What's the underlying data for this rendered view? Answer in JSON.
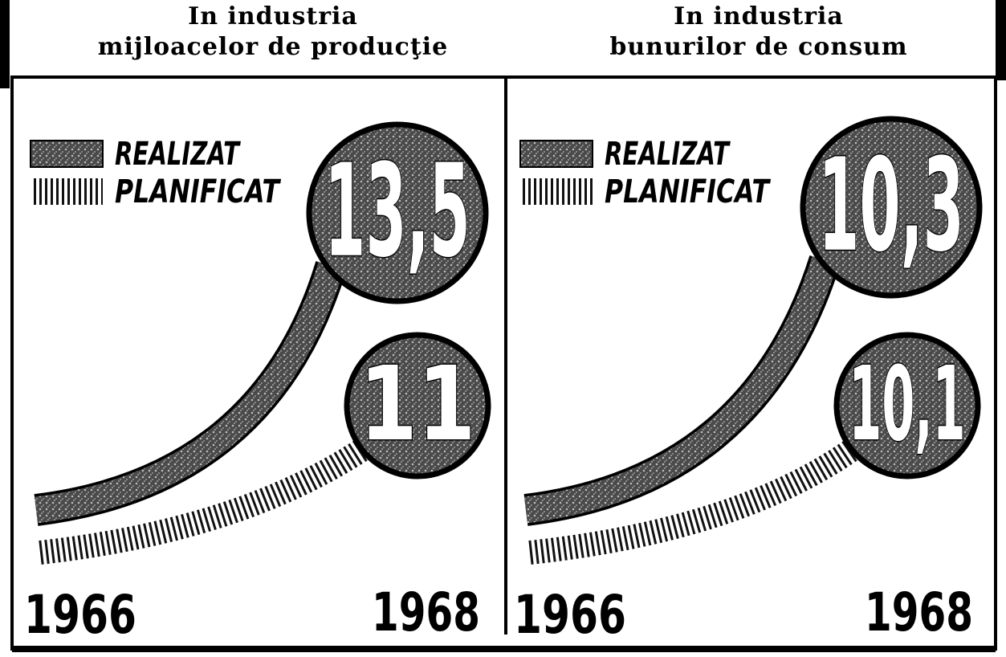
{
  "chart_data": [
    {
      "type": "line",
      "title": [
        "In industria",
        "mijloacelor de producţie"
      ],
      "x": [
        1966,
        1968
      ],
      "series": [
        {
          "name": "REALIZAT",
          "color": "#5a5a5a",
          "values": [
            null,
            13.5
          ],
          "value_labels": [
            null,
            "13,5"
          ]
        },
        {
          "name": "PLANIFICAT",
          "color": "#6a6a6a",
          "values": [
            null,
            11
          ]
        }
      ]
    },
    {
      "type": "line",
      "title": [
        "In industria",
        "bunurilor de consum"
      ],
      "x": [
        1966,
        1968
      ],
      "series": [
        {
          "name": "REALIZAT",
          "color": "#5a5a5a",
          "values": [
            null,
            10.3
          ],
          "value_labels": [
            null,
            "10,3"
          ]
        },
        {
          "name": "PLANIFICAT",
          "color": "#6a6a6a",
          "values": [
            null,
            10.1
          ],
          "value_labels": [
            null,
            "10,1"
          ]
        }
      ]
    }
  ]
}
